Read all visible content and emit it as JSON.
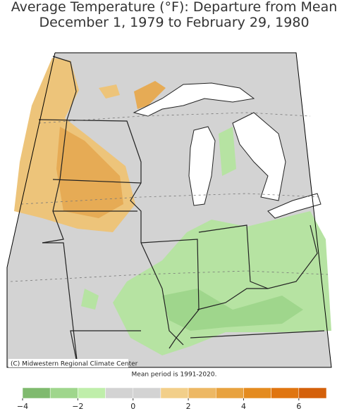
{
  "header": {
    "title": "Average Temperature (°F): Departure from Mean",
    "subtitle": "December 1, 1979 to February 29, 1980"
  },
  "map": {
    "credit": "(C) Midwestern Regional Climate Center",
    "note": "Mean period is 1991-2020."
  },
  "colorbar": {
    "bins": [
      -4,
      -3,
      -2,
      -1,
      0,
      1,
      2,
      3,
      4,
      5,
      6,
      7
    ],
    "colors": [
      "#7fba6e",
      "#9fd68c",
      "#bfeeaa",
      "#d3d3d3",
      "#d3d3d3",
      "#f2cf8a",
      "#edb864",
      "#e8a23f",
      "#e48b1f",
      "#e07510",
      "#d4600a"
    ],
    "ticks": [
      {
        "value": -4,
        "label": "−4"
      },
      {
        "value": -2,
        "label": "−2"
      },
      0,
      2,
      4,
      6
    ]
  }
}
